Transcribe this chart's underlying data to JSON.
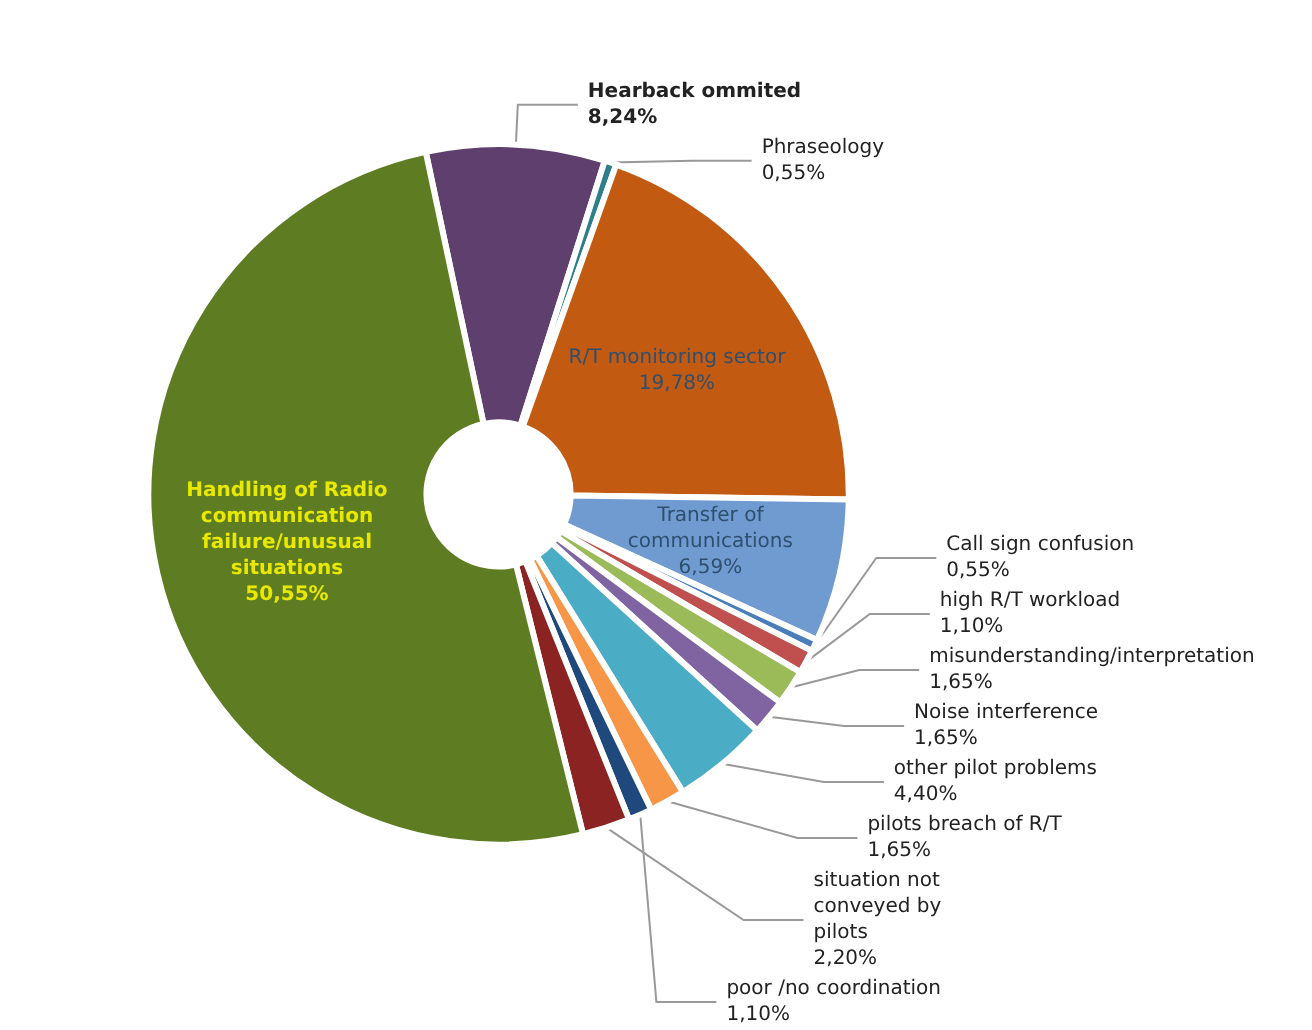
{
  "chart_data": {
    "type": "donut",
    "categories": [
      "Hearback ommited",
      "Phraseology",
      "R/T monitoring sector",
      "Transfer of communications",
      "Call sign confusion",
      "high R/T workload",
      "misunderstanding/interpretation",
      "Noise interference",
      "other pilot problems",
      "pilots breach of R/T",
      "poor /no coordination",
      "situation not conveyed by pilots",
      "Handling of Radio communication failure/unusual situations"
    ],
    "values": [
      8.24,
      0.55,
      19.78,
      6.59,
      0.55,
      1.1,
      1.65,
      1.65,
      4.4,
      1.65,
      1.1,
      2.2,
      50.55
    ],
    "value_labels": [
      "8,24%",
      "0,55%",
      "19,78%",
      "6,59%",
      "0,55%",
      "1,10%",
      "1,65%",
      "1,65%",
      "4,40%",
      "1,65%",
      "1,10%",
      "2,20%",
      "50,55%"
    ],
    "colors": [
      "#5f3f6e",
      "#2e7f8a",
      "#c35a12",
      "#6f9bd1",
      "#4a7ebb",
      "#c0504d",
      "#9bbb59",
      "#8064a2",
      "#4bacc6",
      "#f79646",
      "#1f497d",
      "#8b2323",
      "#5e7d22"
    ],
    "legend": false
  }
}
